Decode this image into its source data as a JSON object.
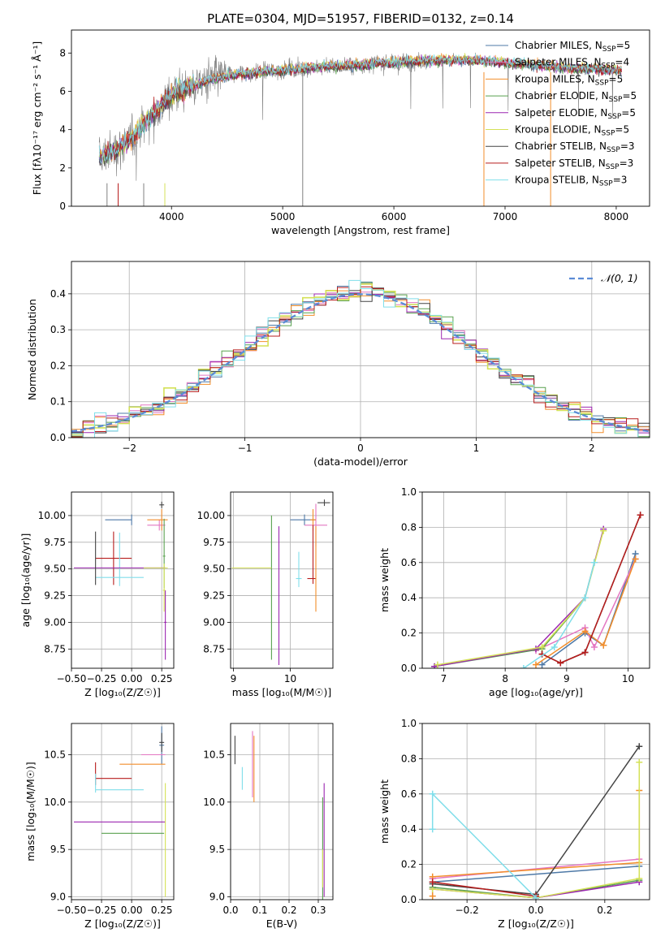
{
  "figure_title": "PLATE=0304, MJD=51957, FIBERID=0132, z=0.14",
  "colors": {
    "Chabrier MILES": "#4e79a7",
    "Salpeter MILES": "#e377c2",
    "Kroupa MILES": "#f28e2b",
    "Chabrier ELODIE": "#59a14f",
    "Salpeter ELODIE": "#9c27b0",
    "Kroupa ELODIE": "#d4e157",
    "Chabrier STELIB": "#444444",
    "Salpeter STELIB": "#b71c1c",
    "Kroupa STELIB": "#80deea",
    "data": "#808080",
    "normal": "#5b8bd6"
  },
  "chart_data": [
    {
      "id": "spectrum",
      "type": "line",
      "title": "PLATE=0304, MJD=51957, FIBERID=0132, z=0.14",
      "xlabel": "wavelength [Angstrom, rest frame]",
      "ylabel": "Flux [fλ10⁻¹⁷ erg cm⁻² s⁻¹ Å⁻¹]",
      "xlim": [
        3100,
        8300
      ],
      "ylim": [
        0,
        9.2
      ],
      "xticks": [
        4000,
        5000,
        6000,
        7000,
        8000
      ],
      "yticks": [
        0,
        2,
        4,
        6,
        8
      ],
      "legend_position": "top-right",
      "legend": [
        {
          "name": "Chabrier MILES",
          "n": "5"
        },
        {
          "name": "Salpeter MILES",
          "n": "4"
        },
        {
          "name": "Kroupa MILES",
          "n": "5"
        },
        {
          "name": "Chabrier ELODIE",
          "n": "5"
        },
        {
          "name": "Salpeter ELODIE",
          "n": "5"
        },
        {
          "name": "Kroupa ELODIE",
          "n": "5"
        },
        {
          "name": "Chabrier STELIB",
          "n": "3"
        },
        {
          "name": "Salpeter STELIB",
          "n": "3"
        },
        {
          "name": "Kroupa STELIB",
          "n": "3"
        }
      ],
      "legend_sub": "SSP",
      "model_curve": {
        "x": [
          3350,
          3450,
          3550,
          3650,
          3750,
          3850,
          3950,
          4050,
          4200,
          4400,
          4600,
          4800,
          5000,
          5200,
          5400,
          5600,
          5800,
          6000,
          6200,
          6400,
          6600,
          6800,
          7000,
          7200,
          7400,
          7600,
          7800,
          8000,
          8050
        ],
        "y": [
          2.6,
          2.8,
          3.1,
          3.6,
          4.3,
          4.9,
          5.5,
          6.0,
          6.3,
          6.7,
          6.9,
          7.0,
          7.1,
          7.2,
          7.3,
          7.35,
          7.45,
          7.5,
          7.6,
          7.6,
          7.65,
          7.6,
          7.5,
          7.4,
          7.3,
          7.2,
          7.2,
          7.1,
          7.1
        ]
      },
      "data_range": [
        3350,
        8050
      ]
    },
    {
      "id": "residuals",
      "type": "histogram",
      "xlabel": "(data-model)/error",
      "ylabel": "Normed distribution",
      "xlim": [
        -2.5,
        2.5
      ],
      "ylim": [
        0,
        0.49
      ],
      "xticks": [
        -2,
        -1,
        0,
        1,
        2
      ],
      "yticks": [
        0.0,
        0.1,
        0.2,
        0.3,
        0.4
      ],
      "grid": true,
      "legend_position": "top-right",
      "legend": [
        "𝒩(0, 1)"
      ],
      "bin_width": 0.1
    },
    {
      "id": "age_vs_Z",
      "type": "errorbar",
      "xlabel": "Z [log₁₀(Z/Z☉)]",
      "ylabel": "age  [log₁₀(age/yr)]",
      "xlim": [
        -0.5,
        0.35
      ],
      "ylim": [
        8.57,
        10.22
      ],
      "xticks": [
        -0.5,
        -0.25,
        0.0,
        0.25
      ],
      "yticks": [
        8.75,
        9.0,
        9.25,
        9.5,
        9.75,
        10.0
      ],
      "grid": true,
      "points": [
        {
          "series": "Chabrier MILES",
          "x": 0.0,
          "xerr": [
            0.22,
            0.0
          ],
          "y": 9.96,
          "yerr": [
            0.05,
            0.05
          ]
        },
        {
          "series": "Salpeter MILES",
          "x": 0.23,
          "xerr": [
            0.1,
            0.05
          ],
          "y": 9.91,
          "yerr": [
            0.05,
            0.05
          ]
        },
        {
          "series": "Kroupa MILES",
          "x": 0.25,
          "xerr": [
            0.12,
            0.05
          ],
          "y": 9.96,
          "yerr": [
            0.1,
            0.1
          ]
        },
        {
          "series": "Chabrier ELODIE",
          "x": 0.27,
          "xerr": [
            0.01,
            0.01
          ],
          "y": 9.62,
          "yerr": [
            0.3,
            0.35
          ]
        },
        {
          "series": "Salpeter ELODIE",
          "x": 0.28,
          "xerr": [
            0.01,
            0.01
          ],
          "y": 9.0,
          "yerr": [
            0.35,
            0.3
          ]
        },
        {
          "series": "Kroupa ELODIE",
          "x": 0.27,
          "xerr": [
            0.01,
            0.01
          ],
          "y": 9.3,
          "yerr": [
            0.2,
            0.25
          ]
        },
        {
          "series": "Chabrier STELIB",
          "x": 0.25,
          "xerr": [
            0.02,
            0.02
          ],
          "y": 10.1,
          "yerr": [
            0.03,
            0.03
          ]
        },
        {
          "series": "Salpeter STELIB",
          "x": -0.15,
          "xerr": [
            0.15,
            0.15
          ],
          "y": 9.6,
          "yerr": [
            0.25,
            0.25
          ]
        },
        {
          "series": "Kroupa STELIB",
          "x": -0.1,
          "xerr": [
            0.2,
            0.2
          ],
          "y": 9.42,
          "yerr": [
            0.08,
            0.42
          ]
        },
        {
          "series": "Salpeter ELODIE",
          "x": -0.1,
          "xerr": [
            0.38,
            0.38
          ],
          "y": 9.51,
          "yerr": [
            0.0,
            0.0
          ]
        },
        {
          "series": "Kroupa ELODIE",
          "x": 0.2,
          "xerr": [
            0.1,
            0.1
          ],
          "y": 9.51,
          "yerr": [
            0.0,
            0.0
          ]
        },
        {
          "series": "Chabrier STELIB",
          "x": -0.3,
          "xerr": [
            0.0,
            0.0
          ],
          "y": 9.6,
          "yerr": [
            0.25,
            0.25
          ]
        }
      ]
    },
    {
      "id": "age_vs_mass",
      "type": "errorbar",
      "xlabel": "mass [log₁₀(M/M☉)]",
      "ylabel": "",
      "xlim": [
        8.95,
        10.75
      ],
      "ylim": [
        8.57,
        10.22
      ],
      "xticks": [
        9,
        10
      ],
      "yticks": [
        8.75,
        9.0,
        9.25,
        9.5,
        9.75,
        10.0
      ],
      "grid": true,
      "points": [
        {
          "series": "Chabrier MILES",
          "x": 10.25,
          "xerr": [
            0.25,
            0.2
          ],
          "y": 9.96,
          "yerr": [
            0.05,
            0.05
          ]
        },
        {
          "series": "Salpeter MILES",
          "x": 10.45,
          "xerr": [
            0.2,
            0.2
          ],
          "y": 9.91,
          "yerr": [
            0.2,
            0.2
          ]
        },
        {
          "series": "Kroupa MILES",
          "x": 10.4,
          "xerr": [
            0.05,
            0.05
          ],
          "y": 9.96,
          "yerr": [
            0.1,
            0.1
          ]
        },
        {
          "series": "Chabrier ELODIE",
          "x": 9.67,
          "xerr": [
            0.0,
            0.0
          ],
          "y": 9.3,
          "yerr": [
            0.65,
            0.7
          ]
        },
        {
          "series": "Salpeter ELODIE",
          "x": 9.8,
          "xerr": [
            0.0,
            0.0
          ],
          "y": 9.25,
          "yerr": [
            0.65,
            0.65
          ]
        },
        {
          "series": "Kroupa ELODIE",
          "x": 9.67,
          "xerr": [
            0.7,
            0.0
          ],
          "y": 9.51,
          "yerr": [
            0.0,
            0.0
          ]
        },
        {
          "series": "Chabrier STELIB",
          "x": 10.6,
          "xerr": [
            0.12,
            0.1
          ],
          "y": 10.12,
          "yerr": [
            0.03,
            0.03
          ]
        },
        {
          "series": "Salpeter STELIB",
          "x": 10.4,
          "xerr": [
            0.1,
            0.05
          ],
          "y": 9.41,
          "yerr": [
            0.05,
            0.5
          ]
        },
        {
          "series": "Kroupa STELIB",
          "x": 10.15,
          "xerr": [
            0.05,
            0.05
          ],
          "y": 9.41,
          "yerr": [
            0.08,
            0.25
          ]
        },
        {
          "series": "Kroupa MILES",
          "x": 10.45,
          "xerr": [
            0.0,
            0.0
          ],
          "y": 9.5,
          "yerr": [
            0.4,
            0.4
          ]
        }
      ]
    },
    {
      "id": "weight_vs_age",
      "type": "line",
      "xlabel": "age  [log₁₀(age/yr)]",
      "ylabel": "mass weight",
      "xlim": [
        6.65,
        10.35
      ],
      "ylim": [
        0,
        1.0
      ],
      "xticks": [
        7,
        8,
        9,
        10
      ],
      "yticks": [
        0.0,
        0.2,
        0.4,
        0.6,
        0.8,
        1.0
      ],
      "grid": true,
      "series": [
        {
          "name": "Chabrier MILES",
          "x": [
            8.6,
            9.3,
            9.6,
            10.12
          ],
          "y": [
            0.02,
            0.2,
            0.13,
            0.65
          ]
        },
        {
          "name": "Salpeter MILES",
          "x": [
            8.5,
            9.3,
            9.45,
            10.12
          ],
          "y": [
            0.1,
            0.23,
            0.12,
            0.62
          ]
        },
        {
          "name": "Kroupa MILES",
          "x": [
            8.5,
            9.3,
            9.6,
            10.12
          ],
          "y": [
            0.02,
            0.21,
            0.13,
            0.62
          ]
        },
        {
          "name": "Chabrier ELODIE",
          "x": [
            6.85,
            8.6,
            9.3,
            9.45
          ],
          "y": [
            0.01,
            0.11,
            0.4,
            0.6
          ]
        },
        {
          "name": "Salpeter ELODIE",
          "x": [
            6.85,
            8.5,
            9.3,
            9.6
          ],
          "y": [
            0.01,
            0.11,
            0.4,
            0.79
          ]
        },
        {
          "name": "Kroupa ELODIE",
          "x": [
            6.9,
            8.6,
            9.3,
            9.6
          ],
          "y": [
            0.02,
            0.12,
            0.4,
            0.78
          ]
        },
        {
          "name": "Chabrier STELIB",
          "x": [
            8.6,
            8.9,
            9.3,
            10.2
          ],
          "y": [
            0.08,
            0.03,
            0.09,
            0.87
          ]
        },
        {
          "name": "Salpeter STELIB",
          "x": [
            8.6,
            8.9,
            9.3,
            10.2
          ],
          "y": [
            0.08,
            0.03,
            0.09,
            0.87
          ]
        },
        {
          "name": "Kroupa STELIB",
          "x": [
            8.3,
            8.8,
            9.3,
            9.45
          ],
          "y": [
            0.0,
            0.12,
            0.4,
            0.6
          ]
        }
      ]
    },
    {
      "id": "mass_vs_Z",
      "type": "errorbar",
      "xlabel": "Z [log₁₀(Z/Z☉)]",
      "ylabel": "mass [log₁₀(M/M☉)]",
      "xlim": [
        -0.5,
        0.35
      ],
      "ylim": [
        8.97,
        10.83
      ],
      "xticks": [
        -0.5,
        -0.25,
        0.0,
        0.25
      ],
      "yticks": [
        9.0,
        9.5,
        10.0,
        10.5
      ],
      "grid": true,
      "points": [
        {
          "series": "Chabrier MILES",
          "x": 0.25,
          "xerr": [
            0.02,
            0.02
          ],
          "y": 10.6,
          "yerr": [
            0.2,
            0.2
          ]
        },
        {
          "series": "Salpeter MILES",
          "x": 0.18,
          "xerr": [
            0.1,
            0.1
          ],
          "y": 10.5,
          "yerr": [
            0.0,
            0.0
          ]
        },
        {
          "series": "Kroupa MILES",
          "x": 0.1,
          "xerr": [
            0.2,
            0.18
          ],
          "y": 10.4,
          "yerr": [
            0.0,
            0.0
          ]
        },
        {
          "series": "Chabrier ELODIE",
          "x": 0.0,
          "xerr": [
            0.25,
            0.27
          ],
          "y": 9.67,
          "yerr": [
            0.0,
            0.0
          ]
        },
        {
          "series": "Salpeter ELODIE",
          "x": -0.1,
          "xerr": [
            0.38,
            0.38
          ],
          "y": 9.79,
          "yerr": [
            0.0,
            0.0
          ]
        },
        {
          "series": "Kroupa ELODIE",
          "x": 0.28,
          "xerr": [
            0.0,
            0.0
          ],
          "y": 9.6,
          "yerr": [
            0.6,
            0.6
          ]
        },
        {
          "series": "Chabrier STELIB",
          "x": 0.25,
          "xerr": [
            0.02,
            0.02
          ],
          "y": 10.63,
          "yerr": [
            0.1,
            0.1
          ]
        },
        {
          "series": "Salpeter STELIB",
          "x": -0.15,
          "xerr": [
            0.15,
            0.15
          ],
          "y": 10.25,
          "yerr": [
            0.0,
            0.0
          ]
        },
        {
          "series": "Kroupa STELIB",
          "x": -0.1,
          "xerr": [
            0.2,
            0.2
          ],
          "y": 10.13,
          "yerr": [
            0.0,
            0.0
          ]
        },
        {
          "series": "Salpeter STELIB",
          "x": -0.3,
          "xerr": [
            0.0,
            0.0
          ],
          "y": 10.3,
          "yerr": [
            0.12,
            0.12
          ]
        },
        {
          "series": "Kroupa STELIB",
          "x": -0.3,
          "xerr": [
            0.0,
            0.0
          ],
          "y": 10.2,
          "yerr": [
            0.1,
            0.1
          ]
        }
      ]
    },
    {
      "id": "mass_vs_EBV",
      "type": "errorbar",
      "xlabel": "E(B-V)",
      "ylabel": "",
      "xlim": [
        0.0,
        0.35
      ],
      "ylim": [
        8.97,
        10.83
      ],
      "xticks": [
        0.0,
        0.1,
        0.2,
        0.3
      ],
      "yticks": [
        9.0,
        9.5,
        10.0,
        10.5
      ],
      "grid": true,
      "points": [
        {
          "series": "Chabrier STELIB",
          "x": 0.015,
          "yerr": [
            0.15,
            0.15
          ],
          "y": 10.55
        },
        {
          "series": "Kroupa STELIB",
          "x": 0.04,
          "yerr": [
            0.12,
            0.12
          ],
          "y": 10.25
        },
        {
          "series": "Salpeter MILES",
          "x": 0.075,
          "yerr": [
            0.35,
            0.35
          ],
          "y": 10.4
        },
        {
          "series": "Kroupa MILES",
          "x": 0.08,
          "yerr": [
            0.35,
            0.35
          ],
          "y": 10.35
        },
        {
          "series": "Salpeter ELODIE",
          "x": 0.32,
          "yerr": [
            0.6,
            0.6
          ],
          "y": 9.6
        },
        {
          "series": "Chabrier ELODIE",
          "x": 0.315,
          "yerr": [
            0.55,
            0.55
          ],
          "y": 9.5
        },
        {
          "series": "Kroupa ELODIE",
          "x": 0.315,
          "yerr": [
            0.2,
            0.2
          ],
          "y": 9.3
        }
      ]
    },
    {
      "id": "weight_vs_Z",
      "type": "line",
      "xlabel": "Z [log₁₀(Z/Z☉)]",
      "ylabel": "mass weight",
      "xlim": [
        -0.33,
        0.33
      ],
      "ylim": [
        0,
        1.0
      ],
      "xticks": [
        -0.2,
        0.0,
        0.2
      ],
      "yticks": [
        0.0,
        0.2,
        0.4,
        0.6,
        0.8,
        1.0
      ],
      "grid": true,
      "series": [
        {
          "name": "Chabrier MILES",
          "x": [
            -0.3,
            0.3
          ],
          "y": [
            0.1,
            0.19
          ]
        },
        {
          "name": "Salpeter MILES",
          "x": [
            -0.3,
            0.3
          ],
          "y": [
            0.12,
            0.23
          ]
        },
        {
          "name": "Kroupa MILES",
          "x": [
            -0.3,
            -0.3,
            0.3,
            0.3
          ],
          "y": [
            0.02,
            0.13,
            0.21,
            0.62
          ]
        },
        {
          "name": "Chabrier ELODIE",
          "x": [
            -0.3,
            0.0,
            0.3
          ],
          "y": [
            0.07,
            0.01,
            0.11
          ]
        },
        {
          "name": "Salpeter ELODIE",
          "x": [
            -0.3,
            0.0,
            0.3
          ],
          "y": [
            0.06,
            0.01,
            0.1
          ]
        },
        {
          "name": "Kroupa ELODIE",
          "x": [
            -0.3,
            0.0,
            0.3,
            0.3
          ],
          "y": [
            0.06,
            0.01,
            0.12,
            0.78
          ]
        },
        {
          "name": "Chabrier STELIB",
          "x": [
            -0.3,
            0.0,
            0.3
          ],
          "y": [
            0.09,
            0.03,
            0.87
          ]
        },
        {
          "name": "Salpeter STELIB",
          "x": [
            -0.3,
            0.0
          ],
          "y": [
            0.1,
            0.02
          ]
        },
        {
          "name": "Kroupa STELIB",
          "x": [
            -0.3,
            -0.3,
            0.0
          ],
          "y": [
            0.4,
            0.6,
            0.01
          ]
        }
      ]
    }
  ]
}
